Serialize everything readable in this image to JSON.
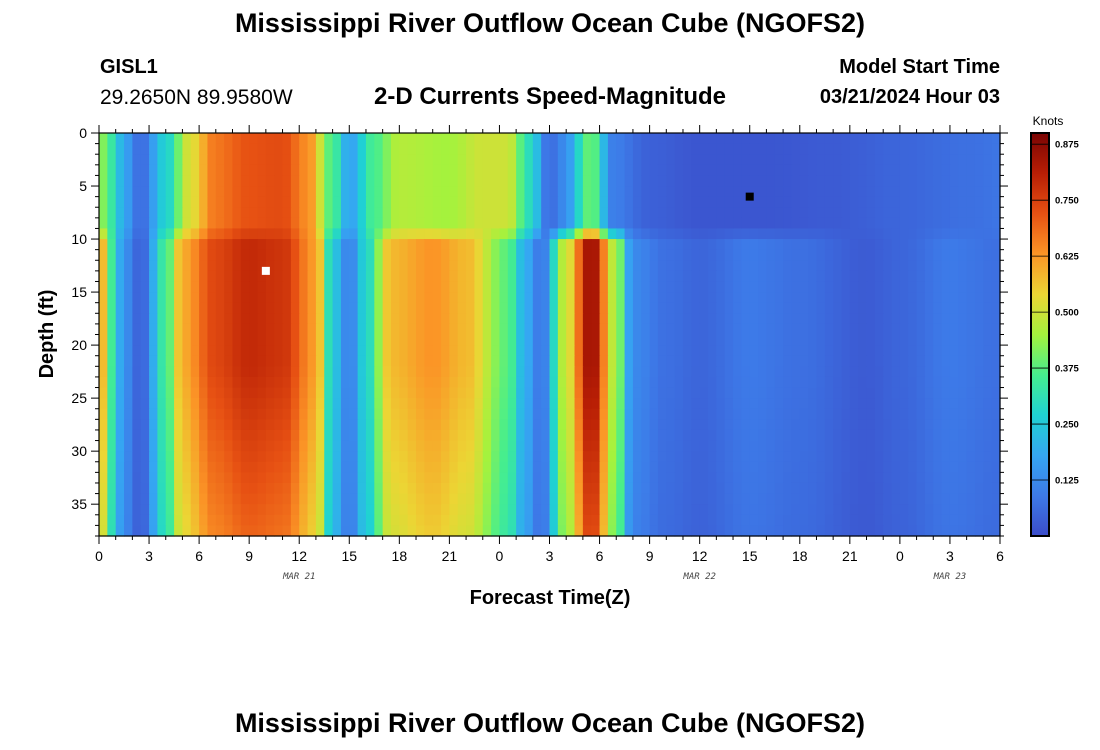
{
  "header": {
    "title": "Mississippi River Outflow Ocean Cube (NGOFS2)",
    "station_id": "GISL1",
    "coordinates": "29.2650N  89.9580W",
    "variable": "2-D Currents Speed-Magnitude",
    "model_start_label": "Model Start Time",
    "model_start_value": "03/21/2024 Hour 03"
  },
  "footer": {
    "title": "Mississippi River Outflow Ocean Cube (NGOFS2)"
  },
  "chart_data": {
    "type": "heatmap",
    "xlabel": "Forecast Time(Z)",
    "ylabel": "Depth (ft)",
    "x_range_hours": [
      0,
      54
    ],
    "x_ticks": [
      "0",
      "3",
      "6",
      "9",
      "12",
      "15",
      "18",
      "21",
      "0",
      "3",
      "6",
      "9",
      "12",
      "15",
      "18",
      "21",
      "0",
      "3",
      "6"
    ],
    "date_labels": [
      {
        "hour": 12,
        "label": "MAR 21"
      },
      {
        "hour": 36,
        "label": "MAR 22"
      },
      {
        "hour": 51,
        "label": "MAR 23"
      }
    ],
    "y_range_ft": [
      0,
      38
    ],
    "y_ticks": [
      0,
      5,
      10,
      15,
      20,
      25,
      30,
      35
    ],
    "colorbar": {
      "unit": "Knots",
      "range": [
        0,
        0.9
      ],
      "ticks": [
        "0.125",
        "0.250",
        "0.375",
        "0.500",
        "0.625",
        "0.750",
        "0.875"
      ],
      "colors": [
        "#3b4cc9",
        "#3d7ae8",
        "#35a6f2",
        "#1fd2d2",
        "#46ee8e",
        "#a5f23d",
        "#ecd534",
        "#fb9426",
        "#e75113",
        "#b81e05",
        "#7a0403"
      ]
    },
    "depth_bands": [
      {
        "from_ft": 0,
        "to_ft": 9,
        "keypoints": [
          [
            0,
            0.45
          ],
          [
            0.5,
            0.38
          ],
          [
            1.2,
            0.22
          ],
          [
            2.5,
            0.06
          ],
          [
            4,
            0.27
          ],
          [
            5.5,
            0.52
          ],
          [
            7,
            0.67
          ],
          [
            9,
            0.72
          ],
          [
            11,
            0.73
          ],
          [
            12.5,
            0.64
          ],
          [
            14,
            0.36
          ],
          [
            15,
            0.17
          ],
          [
            16.5,
            0.36
          ],
          [
            18,
            0.47
          ],
          [
            21,
            0.45
          ],
          [
            23,
            0.5
          ],
          [
            24.5,
            0.5
          ],
          [
            25.8,
            0.3
          ],
          [
            27,
            0.06
          ],
          [
            27.8,
            0.12
          ],
          [
            29.5,
            0.4
          ],
          [
            30.8,
            0.1
          ],
          [
            33,
            0.04
          ],
          [
            36,
            0.02
          ],
          [
            40,
            0.02
          ],
          [
            44,
            0.03
          ],
          [
            48,
            0.05
          ],
          [
            52,
            0.07
          ],
          [
            54,
            0.08
          ]
        ]
      },
      {
        "from_ft": 9,
        "to_ft": 38,
        "keypoints": [
          [
            0,
            0.65
          ],
          [
            0.5,
            0.5
          ],
          [
            1,
            0.2
          ],
          [
            2.5,
            0.04
          ],
          [
            4,
            0.35
          ],
          [
            5,
            0.6
          ],
          [
            7,
            0.74
          ],
          [
            9,
            0.79
          ],
          [
            11,
            0.77
          ],
          [
            13,
            0.62
          ],
          [
            14,
            0.25
          ],
          [
            15,
            0.1
          ],
          [
            16,
            0.28
          ],
          [
            17.5,
            0.58
          ],
          [
            20,
            0.63
          ],
          [
            22,
            0.58
          ],
          [
            24.5,
            0.38
          ],
          [
            25.5,
            0.2
          ],
          [
            26.5,
            0.08
          ],
          [
            28,
            0.5
          ],
          [
            29.5,
            0.86
          ],
          [
            31,
            0.45
          ],
          [
            32,
            0.12
          ],
          [
            34,
            0.07
          ],
          [
            36,
            0.05
          ],
          [
            39,
            0.09
          ],
          [
            42,
            0.07
          ],
          [
            46,
            0.03
          ],
          [
            48,
            0.05
          ],
          [
            51,
            0.09
          ],
          [
            54,
            0.07
          ]
        ]
      }
    ],
    "markers": [
      {
        "hour": 10,
        "depth_ft": 13,
        "color": "#ffffff"
      },
      {
        "hour": 39,
        "depth_ft": 6,
        "color": "#000000"
      }
    ]
  }
}
